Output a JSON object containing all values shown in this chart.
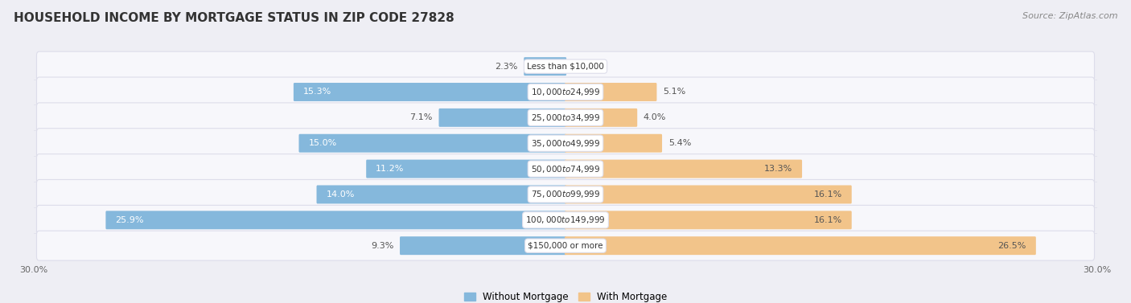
{
  "title": "HOUSEHOLD INCOME BY MORTGAGE STATUS IN ZIP CODE 27828",
  "source": "Source: ZipAtlas.com",
  "categories": [
    "Less than $10,000",
    "$10,000 to $24,999",
    "$25,000 to $34,999",
    "$35,000 to $49,999",
    "$50,000 to $74,999",
    "$75,000 to $99,999",
    "$100,000 to $149,999",
    "$150,000 or more"
  ],
  "without_mortgage": [
    2.3,
    15.3,
    7.1,
    15.0,
    11.2,
    14.0,
    25.9,
    9.3
  ],
  "with_mortgage": [
    0.0,
    5.1,
    4.0,
    5.4,
    13.3,
    16.1,
    16.1,
    26.5
  ],
  "color_without": "#85B8DC",
  "color_with": "#F2C48A",
  "xlim": 30.0,
  "bg_color": "#EEEEF4",
  "row_bg_color": "#F7F7FB",
  "row_border_color": "#DDDDEA",
  "title_fontsize": 11,
  "label_fontsize": 8,
  "tick_fontsize": 8,
  "legend_fontsize": 8.5,
  "source_fontsize": 8
}
